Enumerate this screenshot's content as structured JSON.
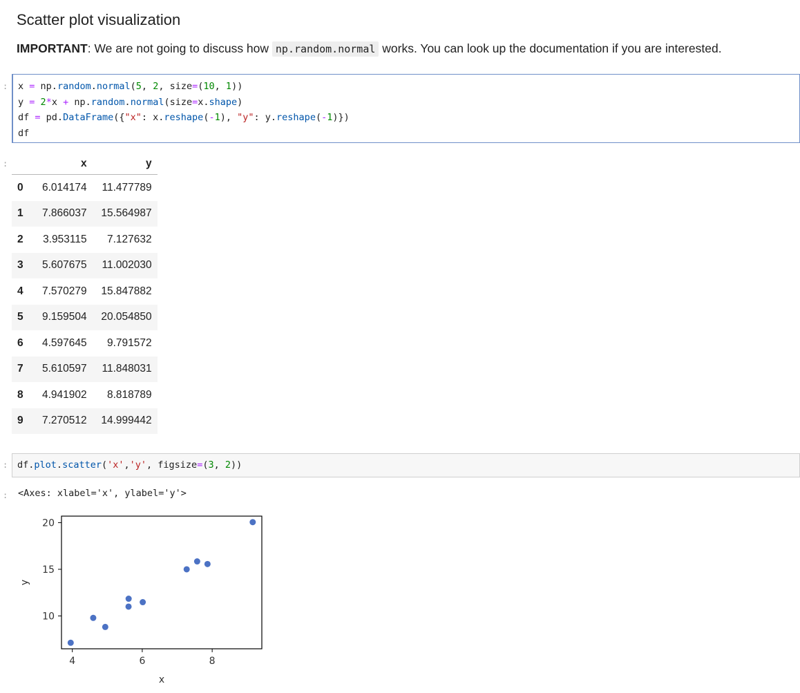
{
  "heading": "Scatter plot visualization",
  "note": {
    "bold": "IMPORTANT",
    "before_code": ": We are not going to discuss how ",
    "code": "np.random.normal",
    "after_code": " works. You can look up the documentation if you are interested."
  },
  "prompts": {
    "cell1_in": ":",
    "cell1_out": ":",
    "cell2_in": ":",
    "cell2_out": ":"
  },
  "cell1_code": [
    "x = np.random.normal(5, 2, size=(10, 1))",
    "y = 2*x + np.random.normal(size=x.shape)",
    "df = pd.DataFrame({\"x\": x.reshape(-1), \"y\": y.reshape(-1)})",
    "df"
  ],
  "dataframe": {
    "columns": [
      "x",
      "y"
    ],
    "rows": [
      {
        "index": "0",
        "x": "6.014174",
        "y": "11.477789"
      },
      {
        "index": "1",
        "x": "7.866037",
        "y": "15.564987"
      },
      {
        "index": "2",
        "x": "3.953115",
        "y": "7.127632"
      },
      {
        "index": "3",
        "x": "5.607675",
        "y": "11.002030"
      },
      {
        "index": "4",
        "x": "7.570279",
        "y": "15.847882"
      },
      {
        "index": "5",
        "x": "9.159504",
        "y": "20.054850"
      },
      {
        "index": "6",
        "x": "4.597645",
        "y": "9.791572"
      },
      {
        "index": "7",
        "x": "5.610597",
        "y": "11.848031"
      },
      {
        "index": "8",
        "x": "4.941902",
        "y": "8.818789"
      },
      {
        "index": "9",
        "x": "7.270512",
        "y": "14.999442"
      }
    ]
  },
  "cell2_code": "df.plot.scatter('x','y', figsize=(3, 2))",
  "cell2_output_text": "<Axes: xlabel='x', ylabel='y'>",
  "colors": {
    "point": "#4c72c4",
    "active_border": "#6f8fc8"
  },
  "chart_data": {
    "type": "scatter",
    "x": [
      6.014174,
      7.866037,
      3.953115,
      5.607675,
      7.570279,
      9.159504,
      4.597645,
      5.610597,
      4.941902,
      7.270512
    ],
    "y": [
      11.477789,
      15.564987,
      7.127632,
      11.00203,
      15.847882,
      20.05485,
      9.791572,
      11.848031,
      8.818789,
      14.999442
    ],
    "xlabel": "x",
    "ylabel": "y",
    "xticks": [
      4,
      6,
      8
    ],
    "yticks": [
      10,
      15,
      20
    ],
    "xlim": [
      3.69,
      9.42
    ],
    "ylim": [
      6.48,
      20.7
    ],
    "grid": false
  }
}
